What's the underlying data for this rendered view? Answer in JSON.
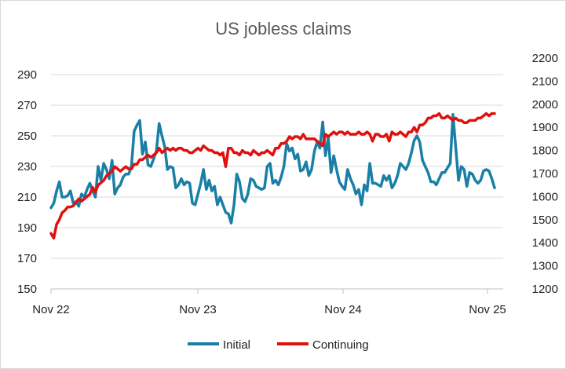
{
  "chart_data": {
    "type": "line",
    "title": "US jobless claims",
    "x_ticks": [
      "Nov 22",
      "Nov 23",
      "Nov 24",
      "Nov 25"
    ],
    "y_left": {
      "ticks": [
        150,
        170,
        190,
        210,
        230,
        250,
        270,
        290
      ],
      "range": [
        150,
        300
      ]
    },
    "y_right": {
      "ticks": [
        1200,
        1300,
        1400,
        1500,
        1600,
        1700,
        1800,
        1900,
        2000,
        2100,
        2200
      ],
      "range": [
        1200,
        2250
      ]
    },
    "grid": "horizontal",
    "legend_position": "bottom",
    "series": [
      {
        "name": "Initial",
        "axis": "left",
        "color": "#1A7FA6",
        "values": [
          203,
          206,
          214,
          220,
          210,
          210,
          211,
          214,
          206,
          207,
          204,
          212,
          210,
          215,
          219,
          214,
          210,
          230,
          221,
          232,
          228,
          222,
          234,
          212,
          216,
          218,
          223,
          225,
          225,
          230,
          253,
          257,
          260,
          238,
          246,
          231,
          230,
          235,
          240,
          258,
          250,
          243,
          228,
          230,
          229,
          216,
          218,
          222,
          218,
          220,
          219,
          206,
          205,
          212,
          219,
          228,
          215,
          221,
          214,
          217,
          205,
          210,
          205,
          200,
          199,
          193,
          205,
          225,
          220,
          209,
          207,
          212,
          222,
          221,
          217,
          216,
          215,
          216,
          230,
          232,
          219,
          221,
          218,
          223,
          230,
          245,
          240,
          242,
          235,
          238,
          227,
          228,
          233,
          224,
          228,
          240,
          246,
          242,
          259,
          237,
          249,
          226,
          237,
          228,
          220,
          217,
          215,
          228,
          222,
          218,
          212,
          215,
          205,
          218,
          214,
          232,
          219,
          219,
          218,
          217,
          224,
          221,
          224,
          216,
          219,
          224,
          232,
          230,
          228,
          232,
          239,
          247,
          250,
          246,
          234,
          230,
          226,
          220,
          220,
          218,
          222,
          226,
          226,
          229,
          232,
          264,
          242,
          221,
          230,
          228,
          217,
          226,
          225,
          221,
          219,
          221,
          227,
          228,
          227,
          222,
          216
        ]
      },
      {
        "name": "Continuing",
        "axis": "right",
        "color": "#E0100F",
        "values": [
          1440,
          1420,
          1480,
          1500,
          1530,
          1540,
          1555,
          1555,
          1560,
          1575,
          1590,
          1580,
          1590,
          1600,
          1610,
          1640,
          1620,
          1650,
          1660,
          1670,
          1690,
          1700,
          1710,
          1730,
          1720,
          1710,
          1720,
          1730,
          1720,
          1720,
          1740,
          1740,
          1760,
          1760,
          1770,
          1780,
          1770,
          1780,
          1790,
          1810,
          1790,
          1800,
          1810,
          1800,
          1810,
          1800,
          1810,
          1810,
          1800,
          1800,
          1790,
          1790,
          1800,
          1810,
          1800,
          1820,
          1810,
          1800,
          1800,
          1790,
          1790,
          1780,
          1790,
          1730,
          1810,
          1810,
          1790,
          1790,
          1780,
          1800,
          1790,
          1790,
          1780,
          1800,
          1790,
          1780,
          1790,
          1790,
          1800,
          1790,
          1780,
          1810,
          1810,
          1830,
          1830,
          1840,
          1860,
          1850,
          1860,
          1860,
          1850,
          1870,
          1850,
          1850,
          1850,
          1850,
          1840,
          1830,
          1820,
          1870,
          1860,
          1870,
          1880,
          1870,
          1880,
          1880,
          1870,
          1880,
          1870,
          1870,
          1870,
          1880,
          1870,
          1870,
          1880,
          1870,
          1840,
          1870,
          1870,
          1860,
          1860,
          1870,
          1840,
          1880,
          1870,
          1870,
          1880,
          1870,
          1860,
          1880,
          1880,
          1900,
          1880,
          1910,
          1910,
          1920,
          1940,
          1940,
          1950,
          1950,
          1960,
          1940,
          1940,
          1950,
          1940,
          1930,
          1940,
          1930,
          1930,
          1920,
          1920,
          1930,
          1930,
          1930,
          1940,
          1940,
          1950,
          1960,
          1950,
          1960,
          1960
        ]
      }
    ]
  }
}
